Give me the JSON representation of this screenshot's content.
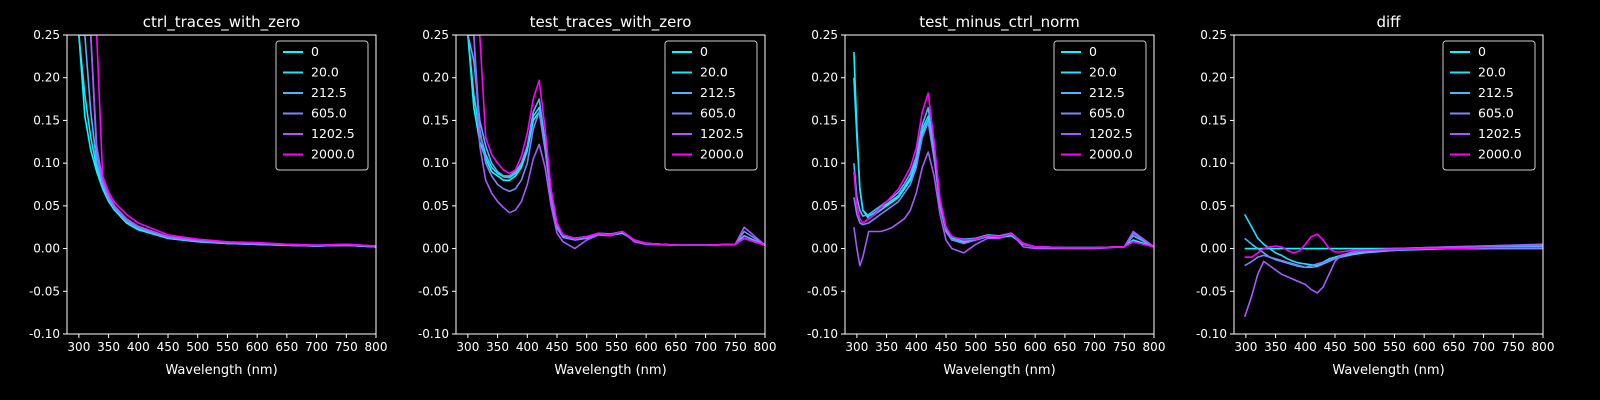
{
  "colors": {
    "background": "#000000",
    "axes": "#ffffff",
    "text": "#ffffff",
    "series": [
      "#00ffff",
      "#1ae4ff",
      "#4cb3ff",
      "#7a85ff",
      "#a659ff",
      "#ff00ff"
    ]
  },
  "chart_data": [
    {
      "type": "line",
      "title": "ctrl_traces_with_zero",
      "xlabel": "Wavelength (nm)",
      "ylabel": "",
      "xlim": [
        280,
        800
      ],
      "ylim": [
        -0.1,
        0.25
      ],
      "xticks": [
        300,
        350,
        400,
        450,
        500,
        550,
        600,
        650,
        700,
        750,
        800
      ],
      "yticks": [
        -0.1,
        -0.05,
        0.0,
        0.05,
        0.1,
        0.15,
        0.2,
        0.25
      ],
      "grid": false,
      "legend": "top-right",
      "x": [
        300,
        310,
        320,
        330,
        340,
        350,
        360,
        380,
        400,
        450,
        500,
        550,
        600,
        650,
        700,
        750,
        800
      ],
      "series": [
        {
          "name": "0",
          "values": [
            0.25,
            0.155,
            0.115,
            0.09,
            0.07,
            0.055,
            0.045,
            0.03,
            0.022,
            0.012,
            0.008,
            0.006,
            0.005,
            0.004,
            0.003,
            0.004,
            0.002
          ]
        },
        {
          "name": "20.0",
          "values": [
            0.25,
            0.18,
            0.13,
            0.095,
            0.072,
            0.056,
            0.046,
            0.031,
            0.023,
            0.012,
            0.008,
            0.006,
            0.005,
            0.004,
            0.003,
            0.004,
            0.002
          ]
        },
        {
          "name": "212.5",
          "values": [
            0.25,
            0.25,
            0.16,
            0.1,
            0.075,
            0.058,
            0.047,
            0.032,
            0.024,
            0.013,
            0.009,
            0.006,
            0.005,
            0.004,
            0.003,
            0.004,
            0.002
          ]
        },
        {
          "name": "605.0",
          "values": [
            0.25,
            0.25,
            0.25,
            0.11,
            0.078,
            0.06,
            0.048,
            0.033,
            0.025,
            0.013,
            0.009,
            0.007,
            0.006,
            0.004,
            0.003,
            0.004,
            0.002
          ]
        },
        {
          "name": "1202.5",
          "values": [
            0.25,
            0.25,
            0.25,
            0.12,
            0.08,
            0.062,
            0.05,
            0.035,
            0.026,
            0.014,
            0.01,
            0.007,
            0.006,
            0.005,
            0.004,
            0.005,
            0.003
          ]
        },
        {
          "name": "2000.0",
          "values": [
            0.25,
            0.25,
            0.25,
            0.25,
            0.085,
            0.066,
            0.054,
            0.04,
            0.03,
            0.016,
            0.011,
            0.008,
            0.007,
            0.005,
            0.004,
            0.005,
            0.003
          ]
        }
      ]
    },
    {
      "type": "line",
      "title": "test_traces_with_zero",
      "xlabel": "Wavelength (nm)",
      "ylabel": "",
      "xlim": [
        280,
        800
      ],
      "ylim": [
        -0.1,
        0.25
      ],
      "xticks": [
        300,
        350,
        400,
        450,
        500,
        550,
        600,
        650,
        700,
        750,
        800
      ],
      "yticks": [
        -0.1,
        -0.05,
        0.0,
        0.05,
        0.1,
        0.15,
        0.2,
        0.25
      ],
      "grid": false,
      "legend": "top-right",
      "x": [
        300,
        310,
        320,
        330,
        340,
        350,
        360,
        370,
        380,
        390,
        400,
        410,
        420,
        430,
        440,
        450,
        460,
        480,
        500,
        520,
        540,
        560,
        580,
        600,
        650,
        700,
        750,
        765,
        800
      ],
      "series": [
        {
          "name": "0",
          "values": [
            0.25,
            0.165,
            0.125,
            0.105,
            0.09,
            0.085,
            0.08,
            0.08,
            0.085,
            0.095,
            0.115,
            0.15,
            0.16,
            0.12,
            0.06,
            0.025,
            0.015,
            0.012,
            0.014,
            0.017,
            0.016,
            0.018,
            0.01,
            0.006,
            0.004,
            0.004,
            0.005,
            0.012,
            0.004
          ]
        },
        {
          "name": "20.0",
          "values": [
            0.25,
            0.18,
            0.135,
            0.11,
            0.095,
            0.088,
            0.084,
            0.083,
            0.088,
            0.098,
            0.118,
            0.155,
            0.165,
            0.122,
            0.062,
            0.026,
            0.015,
            0.012,
            0.014,
            0.017,
            0.016,
            0.018,
            0.01,
            0.006,
            0.004,
            0.004,
            0.005,
            0.012,
            0.004
          ]
        },
        {
          "name": "212.5",
          "values": [
            0.25,
            0.22,
            0.15,
            0.12,
            0.1,
            0.09,
            0.085,
            0.085,
            0.09,
            0.1,
            0.12,
            0.16,
            0.175,
            0.125,
            0.065,
            0.028,
            0.016,
            0.012,
            0.014,
            0.018,
            0.017,
            0.02,
            0.01,
            0.006,
            0.004,
            0.004,
            0.005,
            0.015,
            0.004
          ]
        },
        {
          "name": "605.0",
          "values": [
            0.25,
            0.25,
            0.14,
            0.1,
            0.085,
            0.075,
            0.07,
            0.067,
            0.07,
            0.08,
            0.1,
            0.14,
            0.16,
            0.115,
            0.06,
            0.024,
            0.013,
            0.01,
            0.012,
            0.017,
            0.016,
            0.02,
            0.01,
            0.006,
            0.004,
            0.004,
            0.005,
            0.02,
            0.004
          ]
        },
        {
          "name": "1202.5",
          "values": [
            0.25,
            0.25,
            0.12,
            0.08,
            0.065,
            0.055,
            0.048,
            0.042,
            0.045,
            0.055,
            0.075,
            0.105,
            0.122,
            0.095,
            0.05,
            0.018,
            0.008,
            0.0,
            0.01,
            0.016,
            0.015,
            0.02,
            0.008,
            0.005,
            0.004,
            0.004,
            0.005,
            0.025,
            0.004
          ]
        },
        {
          "name": "2000.0",
          "values": [
            0.25,
            0.25,
            0.25,
            0.13,
            0.11,
            0.1,
            0.092,
            0.088,
            0.092,
            0.108,
            0.135,
            0.175,
            0.197,
            0.14,
            0.07,
            0.03,
            0.016,
            0.012,
            0.014,
            0.018,
            0.016,
            0.02,
            0.01,
            0.006,
            0.004,
            0.004,
            0.005,
            0.012,
            0.004
          ]
        }
      ]
    },
    {
      "type": "line",
      "title": "test_minus_ctrl_norm",
      "xlabel": "Wavelength (nm)",
      "ylabel": "",
      "xlim": [
        280,
        800
      ],
      "ylim": [
        -0.1,
        0.25
      ],
      "xticks": [
        300,
        350,
        400,
        450,
        500,
        550,
        600,
        650,
        700,
        750,
        800
      ],
      "yticks": [
        -0.1,
        -0.05,
        0.0,
        0.05,
        0.1,
        0.15,
        0.2,
        0.25
      ],
      "grid": false,
      "legend": "top-right",
      "x": [
        295,
        300,
        305,
        310,
        320,
        330,
        340,
        350,
        360,
        370,
        380,
        390,
        400,
        410,
        420,
        430,
        440,
        450,
        460,
        480,
        500,
        520,
        540,
        560,
        580,
        600,
        650,
        700,
        750,
        765,
        800
      ],
      "series": [
        {
          "name": "0",
          "values": [
            0.23,
            0.14,
            0.07,
            0.045,
            0.035,
            0.04,
            0.045,
            0.05,
            0.055,
            0.06,
            0.07,
            0.08,
            0.1,
            0.135,
            0.15,
            0.11,
            0.05,
            0.02,
            0.01,
            0.008,
            0.01,
            0.014,
            0.013,
            0.015,
            0.005,
            0.002,
            0.001,
            0.001,
            0.002,
            0.01,
            0.002
          ]
        },
        {
          "name": "20.0",
          "values": [
            0.2,
            0.13,
            0.07,
            0.045,
            0.038,
            0.042,
            0.048,
            0.052,
            0.057,
            0.062,
            0.072,
            0.083,
            0.103,
            0.14,
            0.155,
            0.112,
            0.052,
            0.022,
            0.012,
            0.01,
            0.011,
            0.015,
            0.014,
            0.016,
            0.006,
            0.002,
            0.001,
            0.001,
            0.002,
            0.01,
            0.002
          ]
        },
        {
          "name": "212.5",
          "values": [
            0.1,
            0.06,
            0.045,
            0.038,
            0.04,
            0.045,
            0.05,
            0.055,
            0.06,
            0.066,
            0.076,
            0.088,
            0.108,
            0.145,
            0.165,
            0.115,
            0.055,
            0.024,
            0.013,
            0.011,
            0.012,
            0.016,
            0.015,
            0.018,
            0.006,
            0.002,
            0.001,
            0.001,
            0.002,
            0.015,
            0.002
          ]
        },
        {
          "name": "605.0",
          "values": [
            0.06,
            0.04,
            0.03,
            0.028,
            0.03,
            0.035,
            0.04,
            0.045,
            0.05,
            0.055,
            0.065,
            0.075,
            0.095,
            0.13,
            0.148,
            0.105,
            0.05,
            0.02,
            0.01,
            0.006,
            0.01,
            0.015,
            0.014,
            0.018,
            0.005,
            0.002,
            0.001,
            0.001,
            0.002,
            0.018,
            0.002
          ]
        },
        {
          "name": "1202.5",
          "values": [
            0.025,
            0.0,
            -0.02,
            -0.01,
            0.02,
            0.02,
            0.02,
            0.022,
            0.025,
            0.03,
            0.035,
            0.045,
            0.065,
            0.095,
            0.113,
            0.085,
            0.04,
            0.01,
            0.0,
            -0.005,
            0.005,
            0.012,
            0.012,
            0.018,
            0.002,
            0.0,
            0.0,
            0.0,
            0.002,
            0.02,
            0.002
          ]
        },
        {
          "name": "2000.0",
          "values": [
            0.09,
            0.05,
            0.035,
            0.03,
            0.035,
            0.04,
            0.048,
            0.055,
            0.062,
            0.07,
            0.082,
            0.095,
            0.118,
            0.16,
            0.182,
            0.125,
            0.058,
            0.025,
            0.014,
            0.01,
            0.011,
            0.015,
            0.014,
            0.017,
            0.006,
            0.002,
            0.001,
            0.001,
            0.002,
            0.008,
            0.002
          ]
        }
      ]
    },
    {
      "type": "line",
      "title": "diff",
      "xlabel": "Wavelength (nm)",
      "ylabel": "",
      "xlim": [
        280,
        800
      ],
      "ylim": [
        -0.1,
        0.25
      ],
      "xticks": [
        300,
        350,
        400,
        450,
        500,
        550,
        600,
        650,
        700,
        750,
        800
      ],
      "yticks": [
        -0.1,
        -0.05,
        0.0,
        0.05,
        0.1,
        0.15,
        0.2,
        0.25
      ],
      "grid": false,
      "legend": "top-right",
      "x": [
        298,
        310,
        320,
        330,
        340,
        350,
        360,
        370,
        380,
        390,
        400,
        410,
        420,
        430,
        440,
        450,
        460,
        480,
        500,
        550,
        600,
        650,
        700,
        750,
        800
      ],
      "series": [
        {
          "name": "0",
          "values": [
            0.0,
            0.0,
            0.0,
            0.0,
            0.0,
            0.0,
            0.0,
            0.0,
            0.0,
            0.0,
            0.0,
            0.0,
            0.0,
            0.0,
            0.0,
            0.0,
            0.0,
            0.0,
            0.0,
            0.0,
            0.0,
            0.0,
            0.0,
            0.0,
            0.0
          ]
        },
        {
          "name": "20.0",
          "values": [
            0.04,
            0.025,
            0.012,
            0.005,
            0.0,
            -0.005,
            -0.008,
            -0.012,
            -0.015,
            -0.017,
            -0.018,
            -0.019,
            -0.02,
            -0.016,
            -0.012,
            -0.01,
            -0.008,
            -0.006,
            -0.004,
            -0.002,
            -0.001,
            0.0,
            0.0,
            0.002,
            0.002
          ]
        },
        {
          "name": "212.5",
          "values": [
            0.012,
            0.005,
            0.0,
            -0.005,
            -0.01,
            -0.013,
            -0.015,
            -0.017,
            -0.019,
            -0.021,
            -0.022,
            -0.022,
            -0.021,
            -0.018,
            -0.015,
            -0.012,
            -0.01,
            -0.007,
            -0.005,
            -0.002,
            0.0,
            0.001,
            0.002,
            0.003,
            0.003
          ]
        },
        {
          "name": "605.0",
          "values": [
            -0.02,
            -0.015,
            -0.01,
            -0.008,
            -0.01,
            -0.012,
            -0.014,
            -0.016,
            -0.018,
            -0.02,
            -0.022,
            -0.02,
            -0.018,
            -0.016,
            -0.014,
            -0.012,
            -0.008,
            -0.004,
            -0.002,
            0.0,
            0.001,
            0.002,
            0.003,
            0.004,
            0.005
          ]
        },
        {
          "name": "1202.5",
          "values": [
            -0.08,
            -0.055,
            -0.03,
            -0.015,
            -0.02,
            -0.025,
            -0.03,
            -0.033,
            -0.036,
            -0.039,
            -0.042,
            -0.048,
            -0.052,
            -0.045,
            -0.03,
            -0.015,
            -0.008,
            -0.004,
            -0.002,
            0.0,
            0.001,
            0.002,
            0.003,
            0.004,
            0.004
          ]
        },
        {
          "name": "2000.0",
          "values": [
            -0.01,
            -0.01,
            -0.005,
            0.0,
            0.002,
            0.003,
            0.002,
            -0.002,
            -0.005,
            -0.003,
            0.005,
            0.014,
            0.017,
            0.01,
            0.0,
            -0.004,
            -0.004,
            -0.002,
            -0.002,
            -0.001,
            0.0,
            0.0,
            0.001,
            0.001,
            0.001
          ]
        }
      ]
    }
  ]
}
